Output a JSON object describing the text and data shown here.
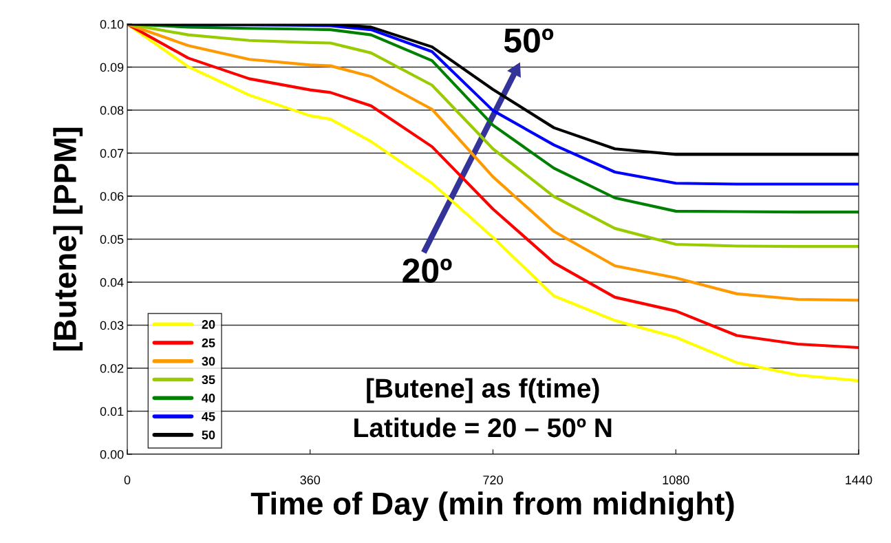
{
  "chart_data": {
    "type": "line",
    "xlabel": "Time of Day (min from midnight)",
    "ylabel": "[Butene] [PPM]",
    "x": [
      0,
      120,
      240,
      360,
      400,
      480,
      600,
      720,
      840,
      960,
      1080,
      1200,
      1320,
      1440
    ],
    "series": [
      {
        "name": "20",
        "color": "#ffff00",
        "values": [
          0.1,
          0.0901,
          0.0835,
          0.0787,
          0.0779,
          0.0727,
          0.063,
          0.0504,
          0.0368,
          0.0311,
          0.0272,
          0.0213,
          0.0184,
          0.0171
        ]
      },
      {
        "name": "25",
        "color": "#ff0000",
        "values": [
          0.1,
          0.0921,
          0.0873,
          0.0847,
          0.0841,
          0.081,
          0.0715,
          0.057,
          0.0445,
          0.0365,
          0.0333,
          0.0276,
          0.0256,
          0.0248
        ]
      },
      {
        "name": "30",
        "color": "#ff9900",
        "values": [
          0.1,
          0.095,
          0.0918,
          0.0905,
          0.0903,
          0.0878,
          0.0802,
          0.0645,
          0.0518,
          0.0438,
          0.041,
          0.0373,
          0.036,
          0.0358
        ]
      },
      {
        "name": "35",
        "color": "#99cc00",
        "values": [
          0.1,
          0.0975,
          0.0962,
          0.0957,
          0.0956,
          0.0933,
          0.0858,
          0.071,
          0.0599,
          0.0525,
          0.0488,
          0.0484,
          0.0483,
          0.0483
        ]
      },
      {
        "name": "40",
        "color": "#008000",
        "values": [
          0.1,
          0.0993,
          0.099,
          0.0988,
          0.0987,
          0.0975,
          0.0915,
          0.0765,
          0.0665,
          0.0596,
          0.0565,
          0.0564,
          0.0563,
          0.0563
        ]
      },
      {
        "name": "45",
        "color": "#0000ff",
        "values": [
          0.1,
          0.0998,
          0.0998,
          0.0997,
          0.0996,
          0.0987,
          0.0936,
          0.0799,
          0.0719,
          0.0656,
          0.063,
          0.0628,
          0.0628,
          0.0628
        ]
      },
      {
        "name": "50",
        "color": "#000000",
        "values": [
          0.1,
          0.1,
          0.1,
          0.1,
          0.1,
          0.0993,
          0.0947,
          0.0848,
          0.0759,
          0.071,
          0.0697,
          0.0697,
          0.0697,
          0.0697
        ]
      }
    ],
    "xlim": [
      0,
      1440
    ],
    "xticks": [
      0,
      360,
      720,
      1080,
      1440
    ],
    "ylim": [
      0,
      0.1
    ],
    "yticks": [
      {
        "value": 0,
        "label": "0.00"
      },
      {
        "value": 0.01,
        "label": "0.01"
      },
      {
        "value": 0.02,
        "label": "0.02"
      },
      {
        "value": 0.03,
        "label": "0.03"
      },
      {
        "value": 0.04,
        "label": "0.04"
      },
      {
        "value": 0.05,
        "label": "0.05"
      },
      {
        "value": 0.06,
        "label": "0.06"
      },
      {
        "value": 0.07,
        "label": "0.07"
      },
      {
        "value": 0.08,
        "label": "0.08"
      },
      {
        "value": 0.09,
        "label": "0.09"
      },
      {
        "value": 0.1,
        "label": "0.10"
      }
    ],
    "grid": "y",
    "legend": "bottom left",
    "marker": "none",
    "line_style": "solid",
    "annotations": [
      "20º",
      "50º",
      "[Butene] as f(time)\nLatitude = 20 – 50º N"
    ]
  }
}
